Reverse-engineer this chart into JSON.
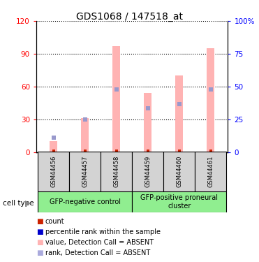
{
  "title": "GDS1068 / 147518_at",
  "samples": [
    "GSM44456",
    "GSM44457",
    "GSM44458",
    "GSM44459",
    "GSM44460",
    "GSM44461"
  ],
  "pink_bar_heights": [
    10,
    31,
    97,
    54,
    70,
    95
  ],
  "blue_marker_y": [
    13,
    30,
    57,
    40,
    44,
    57
  ],
  "red_bar_heights": [
    2,
    2,
    2,
    2,
    2,
    2
  ],
  "left_ylim": [
    0,
    120
  ],
  "right_ylim": [
    0,
    100
  ],
  "left_yticks": [
    0,
    30,
    60,
    90,
    120
  ],
  "right_yticks": [
    0,
    25,
    50,
    75,
    100
  ],
  "right_yticklabels": [
    "0",
    "25",
    "50",
    "75",
    "100%"
  ],
  "group1_label": "GFP-negative control",
  "group2_label": "GFP-positive proneural\ncluster",
  "group1_indices": [
    0,
    1,
    2
  ],
  "group2_indices": [
    3,
    4,
    5
  ],
  "cell_type_label": "cell type",
  "legend_entries": [
    "count",
    "percentile rank within the sample",
    "value, Detection Call = ABSENT",
    "rank, Detection Call = ABSENT"
  ],
  "legend_colors": [
    "#cc2200",
    "#0000cc",
    "#ffb3b3",
    "#aaaadd"
  ],
  "pink_color": "#ffb3b3",
  "blue_marker_color": "#9999cc",
  "red_bar_color": "#cc2200",
  "group_bg_color": "#90ee90",
  "bar_width": 0.25
}
